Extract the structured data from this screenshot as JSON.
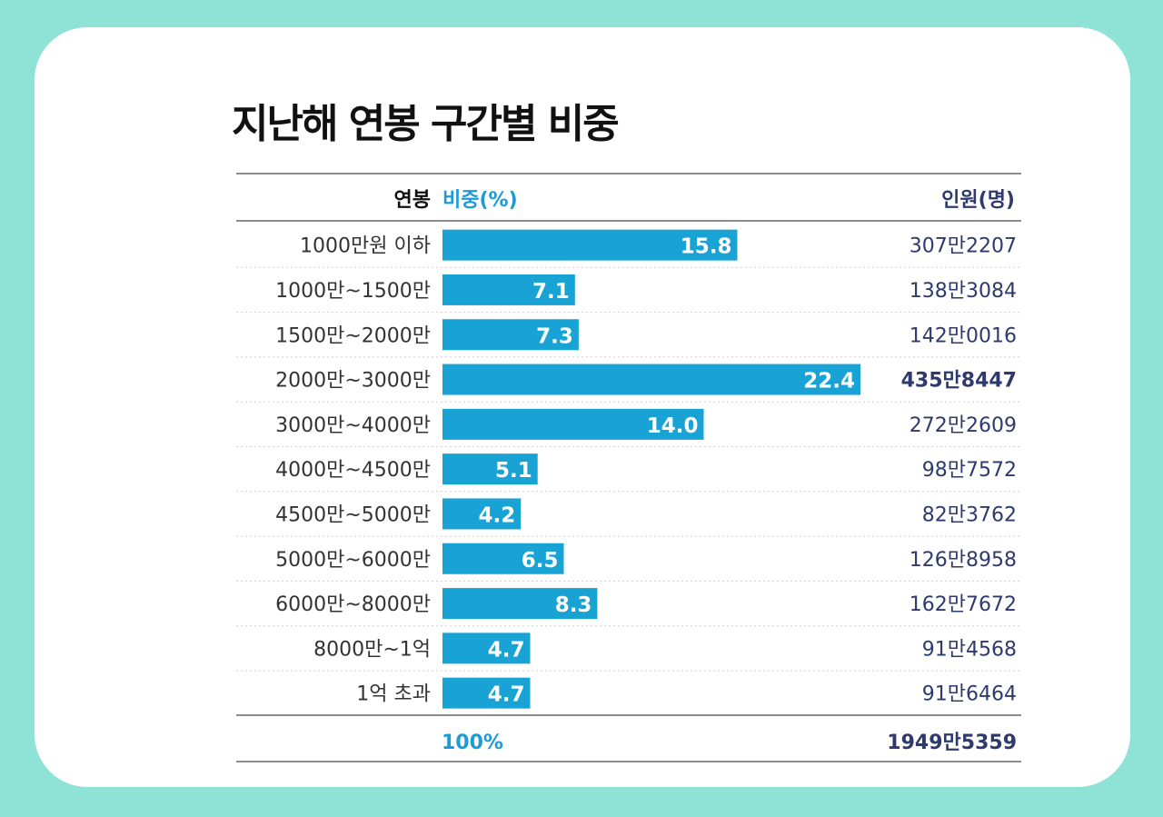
{
  "title": "지난해 연봉 구간별 비중",
  "header": {
    "col_salary": "연봉",
    "col_share": "비중(%)",
    "col_people": "인원(명)"
  },
  "total": {
    "share": "100%",
    "people": "1949만5359"
  },
  "colors": {
    "background": "#8ee3d6",
    "bar": "#19a3d4",
    "header_share": "#1e9bd7",
    "people": "#2e3a6e"
  },
  "chart_data": {
    "type": "bar",
    "orientation": "horizontal",
    "title": "지난해 연봉 구간별 비중",
    "categories": [
      "1000만원 이하",
      "1000만~1500만",
      "1500만~2000만",
      "2000만~3000만",
      "3000만~4000만",
      "4000만~4500만",
      "4500만~5000만",
      "5000만~6000만",
      "6000만~8000만",
      "8000만~1억",
      "1억 초과"
    ],
    "values": [
      15.8,
      7.1,
      7.3,
      22.4,
      14.0,
      5.1,
      4.2,
      6.5,
      8.3,
      4.7,
      4.7
    ],
    "value_labels": [
      "15.8",
      "7.1",
      "7.3",
      "22.4",
      "14.0",
      "5.1",
      "4.2",
      "6.5",
      "8.3",
      "4.7",
      "4.7"
    ],
    "people": [
      "307만2207",
      "138만3084",
      "142만0016",
      "435만8447",
      "272만2609",
      "98만7572",
      "82만3762",
      "126만8958",
      "162만7672",
      "91만4568",
      "91만6464"
    ],
    "highlight_index": 3,
    "xlabel": "비중(%)",
    "ylabel": "연봉",
    "xlim": [
      0,
      22.4
    ]
  }
}
